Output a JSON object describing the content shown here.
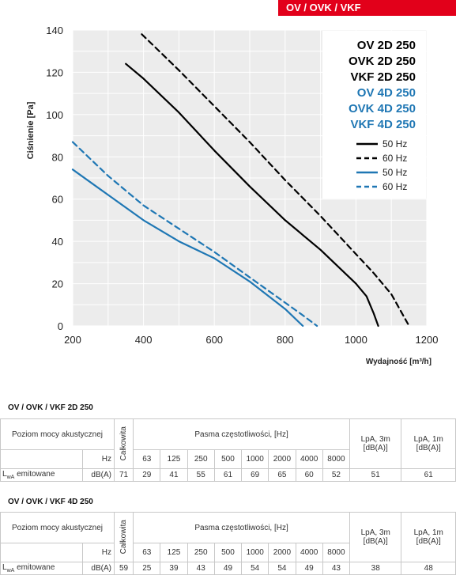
{
  "header": {
    "title": "OV / OVK / VKF"
  },
  "chart_data": {
    "type": "line",
    "xlabel": "Wydajność [m³/h]",
    "ylabel": "Ciśnienie [Pa]",
    "xlim": [
      200,
      1200
    ],
    "ylim": [
      0,
      140
    ],
    "xticks": [
      200,
      400,
      600,
      800,
      1000,
      1200
    ],
    "yticks": [
      0,
      20,
      40,
      60,
      80,
      100,
      120,
      140
    ],
    "grid": true,
    "legend_position": "top-right",
    "models_2d": [
      "OV 2D 250",
      "OVK 2D 250",
      "VKF 2D 250"
    ],
    "models_4d": [
      "OV 4D 250",
      "OVK 4D 250",
      "VKF 4D 250"
    ],
    "colors": {
      "2d": "#000000",
      "4d": "#1f77b4"
    },
    "series": [
      {
        "name": "50 Hz",
        "group": "2D",
        "style": "solid",
        "x": [
          350,
          400,
          500,
          600,
          700,
          800,
          900,
          1000,
          1030,
          1050,
          1063
        ],
        "y": [
          124,
          117,
          101,
          83,
          66,
          50,
          36,
          20,
          14,
          6,
          0
        ]
      },
      {
        "name": "60 Hz",
        "group": "2D",
        "style": "dashed",
        "x": [
          395,
          500,
          600,
          700,
          800,
          900,
          1000,
          1050,
          1100,
          1150
        ],
        "y": [
          138,
          121,
          104,
          87,
          69,
          52,
          34,
          25,
          15,
          0
        ]
      },
      {
        "name": "50 Hz",
        "group": "4D",
        "style": "solid",
        "x": [
          200,
          300,
          400,
          500,
          600,
          700,
          800,
          850
        ],
        "y": [
          74,
          62,
          50,
          40,
          32,
          21,
          8,
          0
        ]
      },
      {
        "name": "60 Hz",
        "group": "4D",
        "style": "dashed",
        "x": [
          200,
          300,
          400,
          500,
          600,
          700,
          800,
          850,
          890
        ],
        "y": [
          87,
          71,
          57,
          46,
          35,
          23,
          11,
          5,
          0
        ]
      }
    ]
  },
  "tables": [
    {
      "title": "OV / OVK / VKF 2D 250",
      "header_label": "Poziom mocy akustycznej",
      "total_label": "Całkowita",
      "bands_label": "Pasma częstotliwości, [Hz]",
      "lpa3_label": "LpA, 3m [dB(A)]",
      "lpa1_label": "LpA, 1m [dB(A)]",
      "unit_hz": "Hz",
      "bands": [
        "63",
        "125",
        "250",
        "500",
        "1000",
        "2000",
        "4000",
        "8000"
      ],
      "row_label_main": "L",
      "row_label_sub": "wA",
      "row_label_rest": " emitowane",
      "row_unit": "dB(A)",
      "total": "71",
      "values": [
        "29",
        "41",
        "55",
        "61",
        "69",
        "65",
        "60",
        "52"
      ],
      "lpa3": "51",
      "lpa1": "61"
    },
    {
      "title": "OV / OVK / VKF 4D 250",
      "header_label": "Poziom mocy akustycznej",
      "total_label": "Całkowita",
      "bands_label": "Pasma częstotliwości, [Hz]",
      "lpa3_label": "LpA, 3m [dB(A)]",
      "lpa1_label": "LpA, 1m [dB(A)]",
      "unit_hz": "Hz",
      "bands": [
        "63",
        "125",
        "250",
        "500",
        "1000",
        "2000",
        "4000",
        "8000"
      ],
      "row_label_main": "L",
      "row_label_sub": "wA",
      "row_label_rest": " emitowane",
      "row_unit": "dB(A)",
      "total": "59",
      "values": [
        "25",
        "39",
        "43",
        "49",
        "54",
        "54",
        "49",
        "43"
      ],
      "lpa3": "38",
      "lpa1": "48"
    }
  ]
}
